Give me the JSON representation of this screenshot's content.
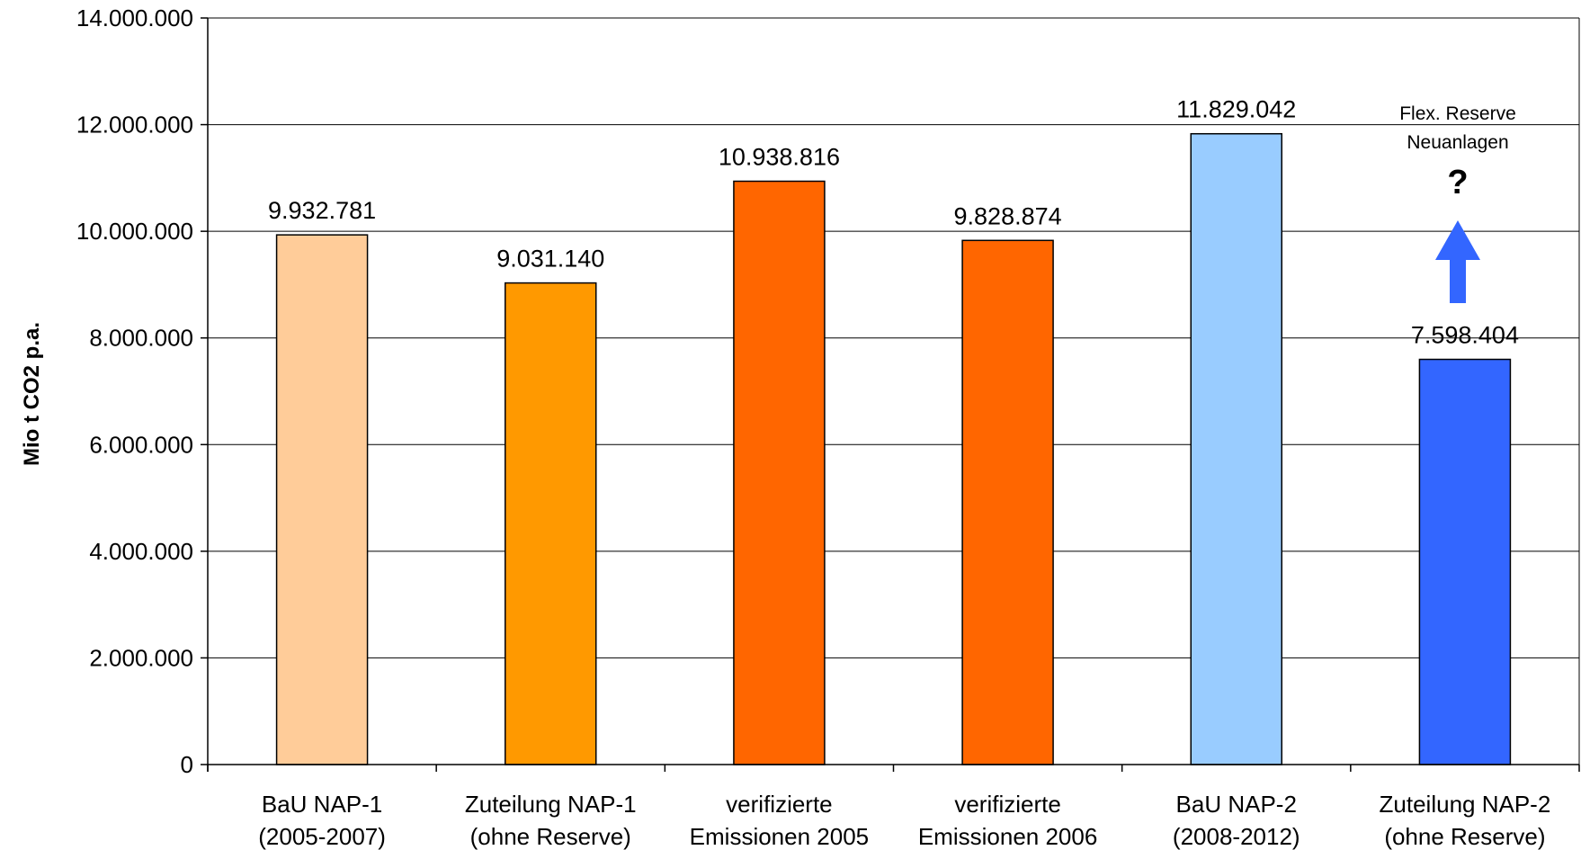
{
  "chart_data": {
    "type": "bar",
    "title": "",
    "xlabel": "",
    "ylabel": "Mio t CO2 p.a.",
    "ylim": [
      0,
      14000000
    ],
    "yticks": [
      0,
      2000000,
      4000000,
      6000000,
      8000000,
      10000000,
      12000000,
      14000000
    ],
    "ytick_labels": [
      "0",
      "2.000.000",
      "4.000.000",
      "6.000.000",
      "8.000.000",
      "10.000.000",
      "12.000.000",
      "14.000.000"
    ],
    "grid": true,
    "legend": "none",
    "categories": [
      [
        "BaU NAP-1",
        "(2005-2007)"
      ],
      [
        "Zuteilung NAP-1",
        "(ohne Reserve)"
      ],
      [
        "verifizierte",
        "Emissionen 2005"
      ],
      [
        "verifizierte",
        "Emissionen 2006"
      ],
      [
        "BaU NAP-2",
        "(2008-2012)"
      ],
      [
        "Zuteilung NAP-2",
        "(ohne Reserve)"
      ]
    ],
    "values": [
      9932781,
      9031140,
      10938816,
      9828874,
      11829042,
      7598404
    ],
    "data_labels": [
      "9.932.781",
      "9.031.140",
      "10.938.816",
      "9.828.874",
      "11.829.042",
      "7.598.404"
    ],
    "colors": [
      "#FFCC99",
      "#FF9900",
      "#FF6600",
      "#FF6600",
      "#99CCFF",
      "#3366FF"
    ],
    "annotation": {
      "category_index": 5,
      "lines": [
        "Flex. Reserve",
        "Neuanlagen"
      ],
      "symbol": "?",
      "arrow": "up",
      "arrow_color": "#3366FF"
    }
  }
}
